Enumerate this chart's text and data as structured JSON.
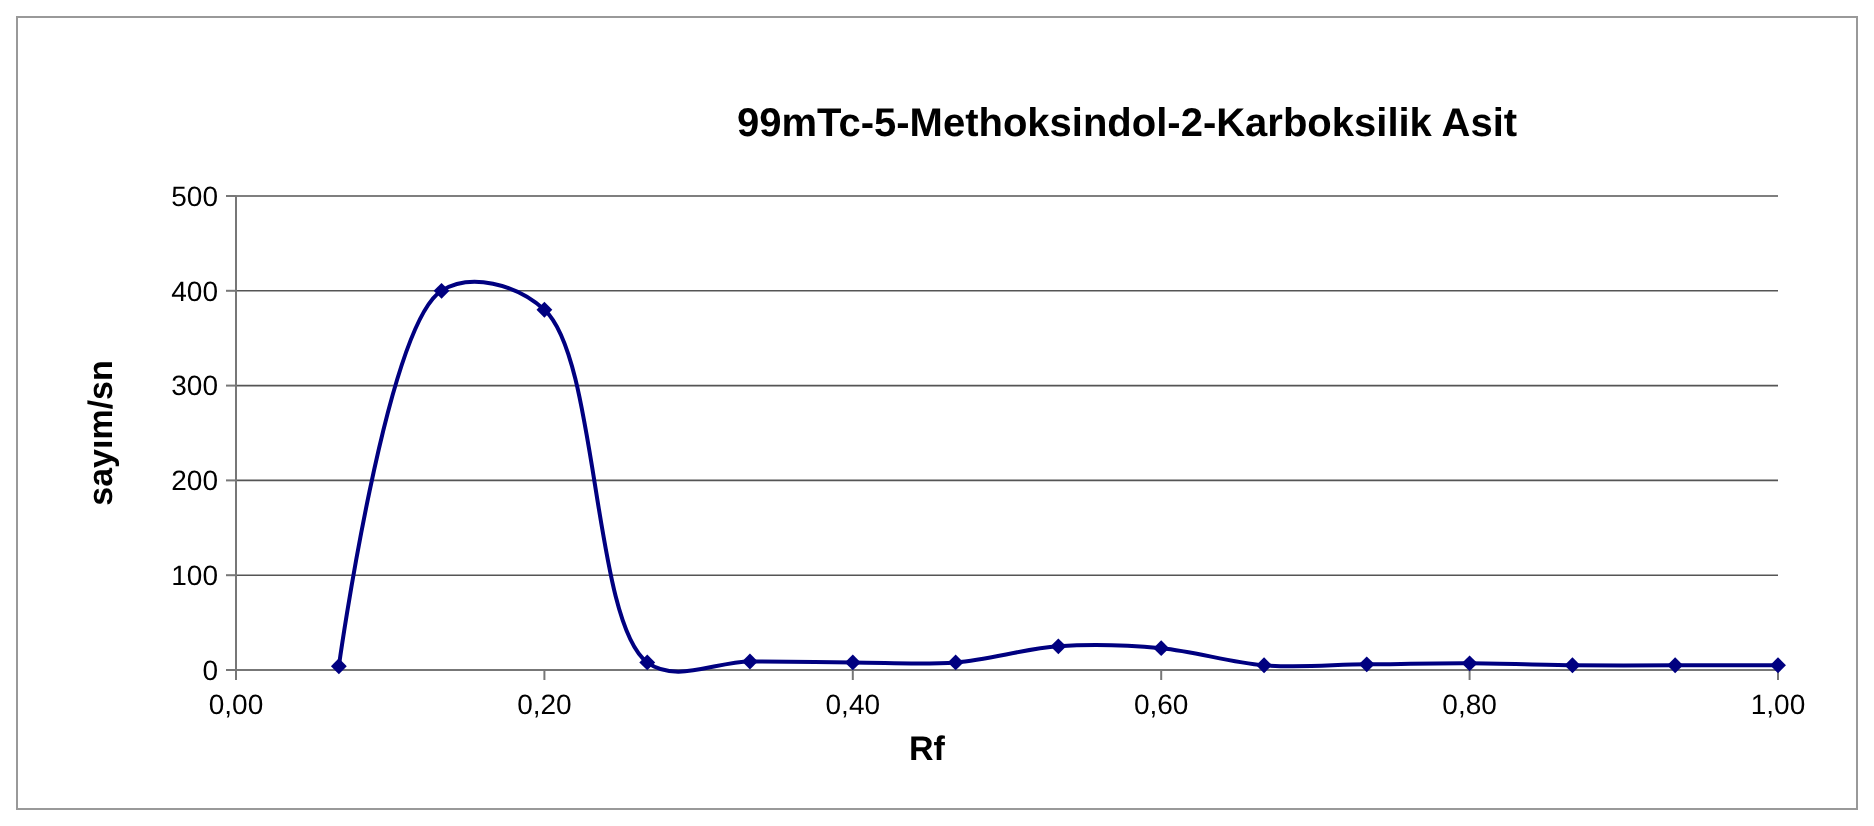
{
  "chart_data": {
    "type": "line",
    "title": "99mTc-5-Methoksindol-2-Karboksilik Asit",
    "xlabel": "Rf",
    "ylabel": "sayım/sn",
    "x": [
      0.0667,
      0.1333,
      0.2,
      0.2667,
      0.3333,
      0.4,
      0.4667,
      0.5333,
      0.6,
      0.6667,
      0.7333,
      0.8,
      0.8667,
      0.9333,
      1.0
    ],
    "series": [
      {
        "color": "#000080",
        "values": [
          4,
          400,
          380,
          8,
          9,
          8,
          8,
          25,
          23,
          5,
          6,
          7,
          5,
          5,
          5
        ]
      }
    ],
    "xlim": [
      0,
      1
    ],
    "xticks": [
      {
        "value": 0,
        "label": "0,00"
      },
      {
        "value": 0.2,
        "label": "0,20"
      },
      {
        "value": 0.4,
        "label": "0,40"
      },
      {
        "value": 0.6,
        "label": "0,60"
      },
      {
        "value": 0.8,
        "label": "0,80"
      },
      {
        "value": 1,
        "label": "1,00"
      }
    ],
    "ylim": [
      0,
      500
    ],
    "yticks": [
      0,
      100,
      200,
      300,
      400,
      500
    ],
    "grid": "y",
    "marker": "diamond",
    "line_style": "solid"
  }
}
